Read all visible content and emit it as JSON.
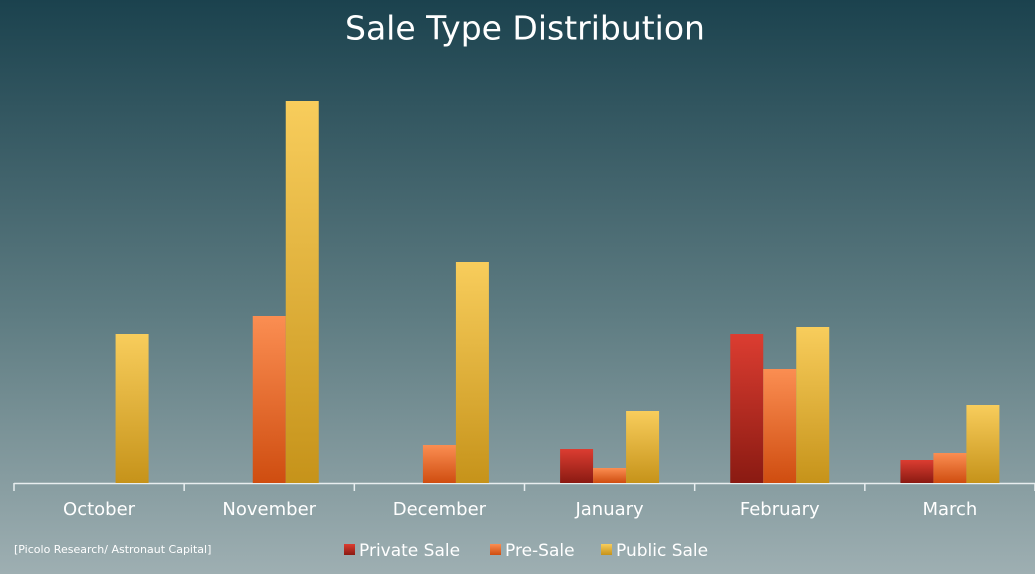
{
  "chart_data": {
    "type": "bar",
    "title": "Sale Type Distribution",
    "source": "[Picolo Research/ Astronaut Capital]",
    "categories": [
      "October",
      "November",
      "December",
      "January",
      "February",
      "March"
    ],
    "series": [
      {
        "name": "Private Sale",
        "color": "#c8281f",
        "values": [
          0,
          0,
          0,
          34,
          149,
          23
        ]
      },
      {
        "name": "Pre-Sale",
        "color": "#f0703a",
        "values": [
          0,
          167,
          38,
          15,
          114,
          30
        ]
      },
      {
        "name": "Public Sale",
        "color": "#f2c14a",
        "values": [
          149,
          382,
          221,
          72,
          156,
          78
        ]
      }
    ]
  }
}
